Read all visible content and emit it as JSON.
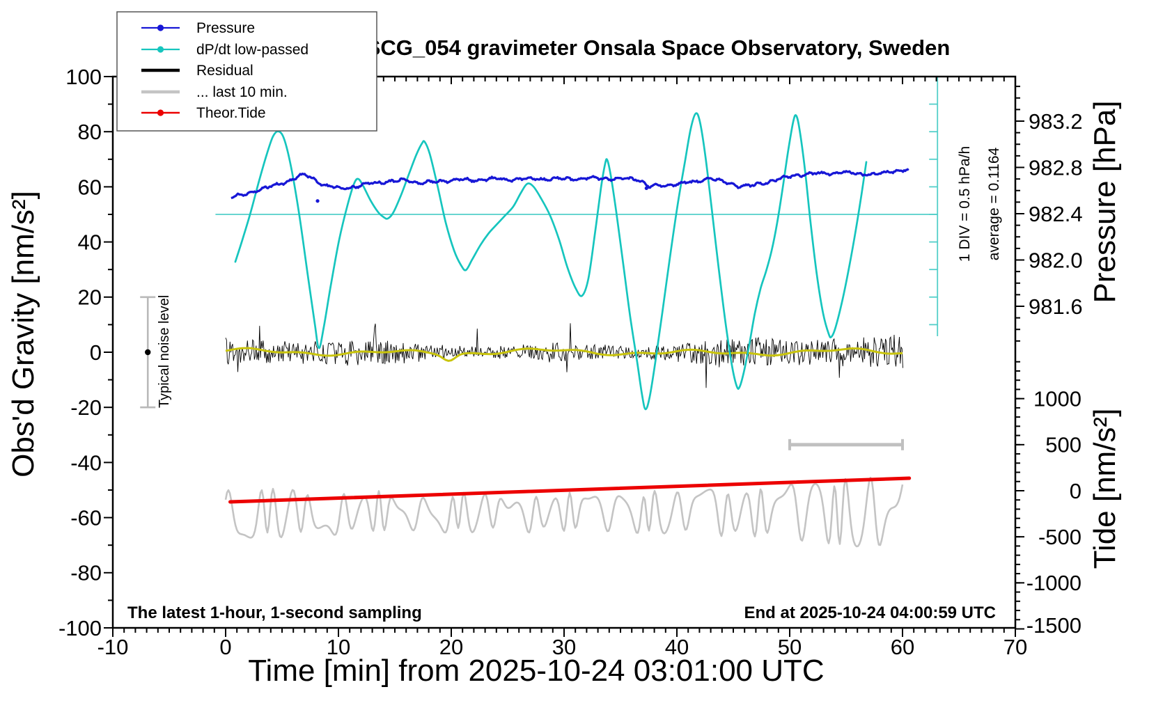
{
  "title": "SCG_054 gravimeter Onsala Space Observatory, Sweden",
  "annotations": {
    "sampling_note": "The latest 1-hour, 1-second sampling",
    "end_note": "End at 2025-10-24 04:00:59 UTC",
    "div_note": "1 DIV = 0.5 hPa/h",
    "average_note": "average = 0.1164",
    "noise_label": "Typical noise level"
  },
  "legend": {
    "items": [
      {
        "id": "pressure",
        "label": "Pressure",
        "color": "#1717d6",
        "width": 2.2,
        "dot": true
      },
      {
        "id": "dpdt",
        "label": "dP/dt low-passed",
        "color": "#16c5be",
        "width": 2.2,
        "dot": true
      },
      {
        "id": "residual",
        "label": "Residual",
        "color": "#000000",
        "width": 4.6,
        "dot": false
      },
      {
        "id": "last10",
        "label": "... last 10 min.",
        "color": "#c4c4c4",
        "width": 4.6,
        "dot": false
      },
      {
        "id": "theor_tide",
        "label": "Theor.Tide",
        "color": "#ec0000",
        "width": 2.4,
        "dot": true
      }
    ]
  },
  "axes": {
    "x": {
      "label": "Time [min] from 2025-10-24 03:01:00 UTC",
      "range": [
        -10,
        70
      ],
      "major": 10,
      "minor": 1,
      "tick_labels": [
        "-10",
        "0",
        "10",
        "20",
        "30",
        "40",
        "50",
        "60",
        "70"
      ],
      "tick_values": [
        -10,
        0,
        10,
        20,
        30,
        40,
        50,
        60,
        70
      ]
    },
    "gravity": {
      "label": "Obs'd Gravity [nm/s²]",
      "range": [
        -100,
        100
      ],
      "major": 20,
      "minor": 10,
      "tick_labels": [
        "-100",
        "-80",
        "-60",
        "-40",
        "-20",
        "0",
        "20",
        "40",
        "60",
        "80",
        "100"
      ],
      "tick_values": [
        -100,
        -80,
        -60,
        -40,
        -20,
        0,
        20,
        40,
        60,
        80,
        100
      ]
    },
    "pressure": {
      "label": "Pressure [hPa]",
      "major": 0.4,
      "minor": 0.1,
      "tick_labels": [
        "983.2",
        "982.8",
        "982.4",
        "982.0",
        "981.6"
      ],
      "tick_values": [
        983.2,
        982.8,
        982.4,
        982.0,
        981.6
      ],
      "minor_range": [
        981.3,
        983.5
      ]
    },
    "tide": {
      "label": "Tide [nm/s²]",
      "major": 500,
      "minor": 100,
      "tick_labels": [
        "1000",
        "500",
        "0",
        "-500",
        "-1000",
        "-1500"
      ],
      "tick_values": [
        1000,
        500,
        0,
        -500,
        -1000,
        -1500
      ],
      "minor_range": [
        -1400,
        1400
      ]
    }
  },
  "chart_data": {
    "type": "line",
    "title": "SCG_054 gravimeter Onsala Space Observatory, Sweden",
    "xlabel": "Time [min] from 2025-10-24 03:01:00 UTC",
    "xlim": [
      -10,
      70
    ],
    "gravity_ylim": [
      -100,
      100
    ],
    "pressure_ylim_top_axis": [
      981.2,
      983.6
    ],
    "tide_ylim_bottom_axis": [
      -1500,
      1500
    ],
    "grid": false,
    "legend_position": "top-left",
    "series": {
      "pressure_hPa": {
        "name": "Pressure",
        "units": "hPa",
        "points": [
          [
            0.49,
            982.544
          ],
          [
            1.91,
            982.568
          ],
          [
            2.96,
            982.611
          ],
          [
            4.07,
            982.635
          ],
          [
            5.31,
            982.671
          ],
          [
            6.23,
            982.713
          ],
          [
            6.97,
            982.737
          ],
          [
            7.9,
            982.695
          ],
          [
            8.89,
            982.641
          ],
          [
            10.25,
            982.617
          ],
          [
            11.48,
            982.635
          ],
          [
            12.72,
            982.659
          ],
          [
            14.26,
            982.677
          ],
          [
            15.8,
            982.689
          ],
          [
            17.35,
            982.665
          ],
          [
            18.89,
            982.677
          ],
          [
            20.43,
            982.695
          ],
          [
            21.98,
            982.689
          ],
          [
            23.52,
            982.701
          ],
          [
            25.06,
            982.695
          ],
          [
            26.91,
            982.701
          ],
          [
            28.77,
            982.701
          ],
          [
            30.62,
            982.701
          ],
          [
            32.47,
            982.707
          ],
          [
            34.32,
            982.701
          ],
          [
            35.86,
            982.701
          ],
          [
            36.79,
            982.689
          ],
          [
            37.41,
            982.635
          ],
          [
            38.64,
            982.641
          ],
          [
            40.19,
            982.659
          ],
          [
            41.73,
            982.677
          ],
          [
            42.96,
            982.707
          ],
          [
            44.2,
            982.671
          ],
          [
            45.43,
            982.641
          ],
          [
            46.67,
            982.641
          ],
          [
            47.9,
            982.671
          ],
          [
            49.14,
            982.701
          ],
          [
            50.37,
            982.731
          ],
          [
            51.91,
            982.743
          ],
          [
            53.46,
            982.749
          ],
          [
            55.0,
            982.755
          ],
          [
            56.54,
            982.743
          ],
          [
            57.78,
            982.737
          ],
          [
            58.7,
            982.761
          ],
          [
            59.63,
            982.773
          ],
          [
            60.56,
            982.779
          ]
        ],
        "outlier_points": [
          [
            8.15,
            982.51
          ],
          [
            37.3,
            982.62
          ]
        ]
      },
      "dpdt_low_passed": {
        "name": "dP/dt low-passed",
        "units": "gravity-equivalent nm/s² (1 DIV = 10 units = 0.5 hPa/h, reference line at 50)",
        "points": [
          [
            0.86,
            32.8
          ],
          [
            1.48,
            40.7
          ],
          [
            2.22,
            50.8
          ],
          [
            2.96,
            62.1
          ],
          [
            3.64,
            71.7
          ],
          [
            4.2,
            78.3
          ],
          [
            4.69,
            80.1
          ],
          [
            5.19,
            77.3
          ],
          [
            5.8,
            67.2
          ],
          [
            6.54,
            49.5
          ],
          [
            7.28,
            28.0
          ],
          [
            7.9,
            10.4
          ],
          [
            8.27,
            1.5
          ],
          [
            8.7,
            9.1
          ],
          [
            9.32,
            24.2
          ],
          [
            10.06,
            40.7
          ],
          [
            10.8,
            53.3
          ],
          [
            11.36,
            60.9
          ],
          [
            11.73,
            62.9
          ],
          [
            12.16,
            60.6
          ],
          [
            12.84,
            55.1
          ],
          [
            13.52,
            50.8
          ],
          [
            14.01,
            49.0
          ],
          [
            14.38,
            48.5
          ],
          [
            14.88,
            50.8
          ],
          [
            15.56,
            57.1
          ],
          [
            16.3,
            65.2
          ],
          [
            16.91,
            71.7
          ],
          [
            17.41,
            75.8
          ],
          [
            17.65,
            76.3
          ],
          [
            18.09,
            72.0
          ],
          [
            18.77,
            60.6
          ],
          [
            19.51,
            47.0
          ],
          [
            20.25,
            36.9
          ],
          [
            20.86,
            31.6
          ],
          [
            21.3,
            29.8
          ],
          [
            21.85,
            33.6
          ],
          [
            22.59,
            38.9
          ],
          [
            23.27,
            42.9
          ],
          [
            23.95,
            46.0
          ],
          [
            24.75,
            49.5
          ],
          [
            25.49,
            52.8
          ],
          [
            26.17,
            57.8
          ],
          [
            26.73,
            61.1
          ],
          [
            27.28,
            60.1
          ],
          [
            27.96,
            55.8
          ],
          [
            28.77,
            49.5
          ],
          [
            29.57,
            40.7
          ],
          [
            30.31,
            30.6
          ],
          [
            31.05,
            23.0
          ],
          [
            31.6,
            20.5
          ],
          [
            32.16,
            26.8
          ],
          [
            32.78,
            44.4
          ],
          [
            33.27,
            59.6
          ],
          [
            33.64,
            68.4
          ],
          [
            33.83,
            69.7
          ],
          [
            34.14,
            64.1
          ],
          [
            34.63,
            50.8
          ],
          [
            35.25,
            31.8
          ],
          [
            35.86,
            12.9
          ],
          [
            36.48,
            -3.5
          ],
          [
            36.91,
            -15.4
          ],
          [
            37.22,
            -20.7
          ],
          [
            37.59,
            -16.2
          ],
          [
            38.09,
            -3.5
          ],
          [
            38.7,
            14.1
          ],
          [
            39.38,
            34.3
          ],
          [
            40.06,
            53.3
          ],
          [
            40.74,
            69.7
          ],
          [
            41.23,
            81.1
          ],
          [
            41.67,
            86.6
          ],
          [
            42.04,
            83.6
          ],
          [
            42.53,
            71.0
          ],
          [
            43.09,
            52.0
          ],
          [
            43.7,
            30.6
          ],
          [
            44.32,
            10.4
          ],
          [
            44.88,
            -4.8
          ],
          [
            45.31,
            -12.4
          ],
          [
            45.56,
            -12.6
          ],
          [
            45.93,
            -7.3
          ],
          [
            46.42,
            2.8
          ],
          [
            46.91,
            14.1
          ],
          [
            47.41,
            23.0
          ],
          [
            47.9,
            29.3
          ],
          [
            48.4,
            36.9
          ],
          [
            48.89,
            47.0
          ],
          [
            49.38,
            59.6
          ],
          [
            49.88,
            73.5
          ],
          [
            50.31,
            83.6
          ],
          [
            50.56,
            85.9
          ],
          [
            50.86,
            81.1
          ],
          [
            51.36,
            65.9
          ],
          [
            51.85,
            47.0
          ],
          [
            52.41,
            28.0
          ],
          [
            52.96,
            14.1
          ],
          [
            53.46,
            6.6
          ],
          [
            53.7,
            5.6
          ],
          [
            54.07,
            9.1
          ],
          [
            54.69,
            19.2
          ],
          [
            55.31,
            31.8
          ],
          [
            55.86,
            44.4
          ],
          [
            56.36,
            57.1
          ],
          [
            56.79,
            69.0
          ]
        ],
        "reference_line_gravity": 50,
        "reference_line_t_span": [
          -0.9,
          63.1
        ],
        "ruler": {
          "t": 63.1,
          "gravity_span": [
            5.8,
            100
          ],
          "tick_step_gravity": 10
        }
      },
      "residual": {
        "name": "Residual",
        "units": "nm/s²",
        "t_span": [
          0,
          60.1
        ],
        "center": 0,
        "typical_amplitude": 4.5,
        "spike_amplitude": 12
      },
      "residual_smoothed": {
        "name": "Residual low-passed (yellow)",
        "units": "nm/s²",
        "t_span": [
          0,
          60.1
        ],
        "center": 0,
        "typical_amplitude": 1.2
      },
      "last_10_min": {
        "name": "... last 10 min.",
        "units": "tide-axis nm/s²",
        "t_span": [
          0,
          60.1
        ],
        "center_tide": -240,
        "amplitude_tide_start": 230,
        "amplitude_tide_end": 360
      },
      "theor_tide": {
        "name": "Theor.Tide",
        "units": "tide-axis nm/s²",
        "points": [
          [
            0.4,
            -121
          ],
          [
            60.6,
            136
          ]
        ]
      }
    },
    "markers": {
      "noise_bar": {
        "t": -6.9,
        "gravity_center": 0,
        "gravity_range": [
          -20,
          20
        ]
      },
      "last10_scale_bar": {
        "t_span": [
          50,
          60
        ],
        "tide": 500
      }
    }
  }
}
